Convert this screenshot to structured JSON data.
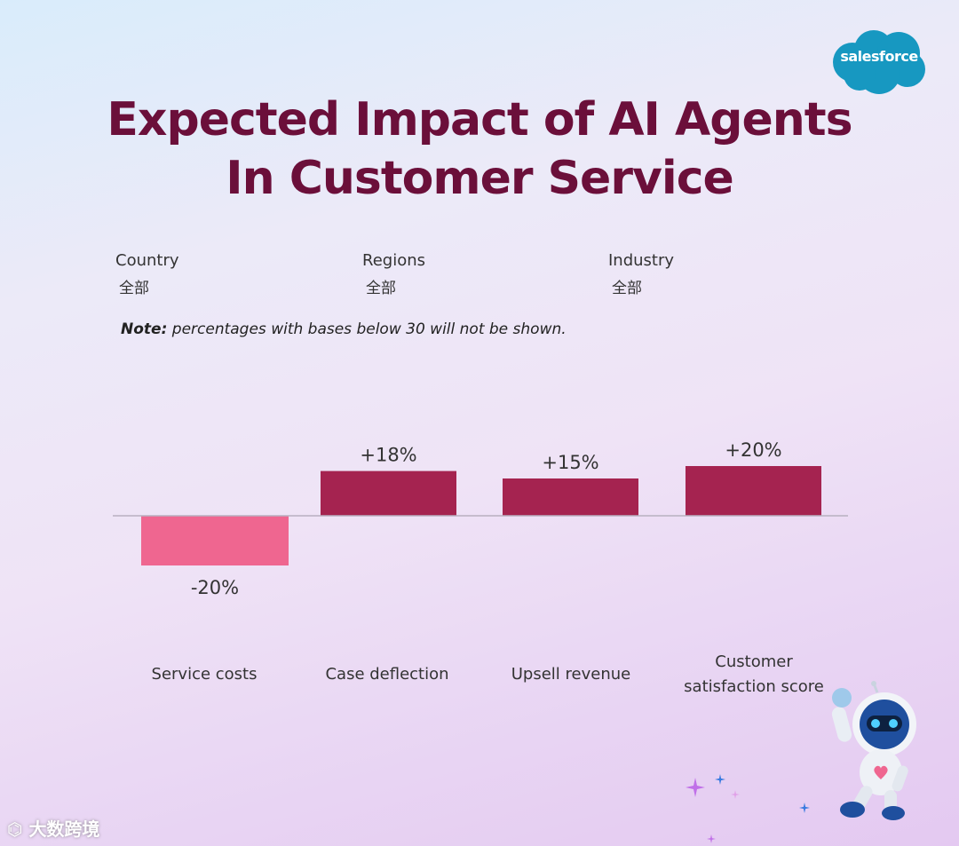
{
  "brand": {
    "logo_text": "salesforce",
    "logo_color": "#1798c1"
  },
  "title_lines": [
    "Expected Impact of AI Agents",
    "In Customer Service"
  ],
  "filters": [
    {
      "label": "Country",
      "value": "全部"
    },
    {
      "label": "Regions",
      "value": "全部"
    },
    {
      "label": "Industry",
      "value": "全部"
    }
  ],
  "note": {
    "prefix": "Note:",
    "text": " percentages with bases below 30 will not be shown."
  },
  "colors": {
    "positive": "#a52350",
    "negative": "#ef6690",
    "title": "#6b0f3a"
  },
  "chart_data": {
    "type": "bar",
    "categories": [
      "Service costs",
      "Case deflection",
      "Upsell revenue",
      "Customer satisfaction score"
    ],
    "category_lines": [
      [
        "Service costs"
      ],
      [
        "Case deflection"
      ],
      [
        "Upsell revenue"
      ],
      [
        "Customer",
        "satisfaction score"
      ]
    ],
    "values": [
      -20,
      18,
      15,
      20
    ],
    "value_labels": [
      "-20%",
      "+18%",
      "+15%",
      "+20%"
    ],
    "ylim": [
      -20,
      20
    ],
    "grid": false
  },
  "watermark": "大数跨境"
}
